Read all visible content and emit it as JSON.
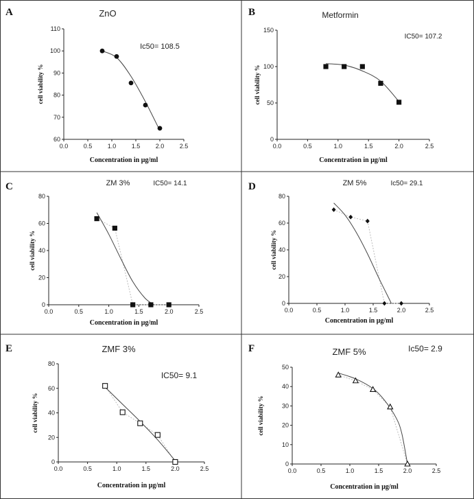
{
  "figure": {
    "grid_lines_color": "#333333",
    "fit_color": "#444444",
    "connector_color": "#bbbbbb"
  },
  "chart_data": [
    {
      "panel_letter": "A",
      "type": "scatter",
      "title": "ZnO",
      "ic50_label": "Ic50= 108.5",
      "marker": "circle",
      "xlabel": "Concentration in μg/ml",
      "ylabel": "cell viability %",
      "xlim": [
        0,
        2.5
      ],
      "ylim": [
        60,
        110
      ],
      "xticks": [
        0.0,
        0.5,
        1.0,
        1.5,
        2.0,
        2.5
      ],
      "xtick_labels": [
        "0.0",
        "0.5",
        "1.0",
        "1.5",
        "2.0",
        "2.5"
      ],
      "yticks": [
        60,
        70,
        80,
        90,
        100,
        110
      ],
      "ytick_labels": [
        "60",
        "70",
        "80",
        "90",
        "100",
        "110"
      ],
      "x": [
        0.8,
        1.1,
        1.4,
        1.7,
        2.0
      ],
      "y": [
        100,
        97.5,
        85.5,
        75.5,
        65
      ],
      "fit": [
        [
          0.8,
          100
        ],
        [
          1.1,
          97
        ],
        [
          1.4,
          88.5
        ],
        [
          1.7,
          77
        ],
        [
          2.0,
          64
        ]
      ],
      "connector": false
    },
    {
      "panel_letter": "B",
      "type": "scatter",
      "title": "Metformin",
      "ic50_label": "IC50= 107.2",
      "marker": "square",
      "xlabel": "Concentration in μg/ml",
      "ylabel": "cell viability %",
      "xlim": [
        0,
        2.5
      ],
      "ylim": [
        0,
        150
      ],
      "xticks": [
        0.0,
        0.5,
        1.0,
        1.5,
        2.0,
        2.5
      ],
      "xtick_labels": [
        "0.0",
        "0.5",
        "1.0",
        "1.5",
        "2.0",
        "2.5"
      ],
      "yticks": [
        0,
        50,
        100,
        150
      ],
      "ytick_labels": [
        "0",
        "50",
        "100",
        "150"
      ],
      "x": [
        0.8,
        1.1,
        1.4,
        1.7,
        2.0
      ],
      "y": [
        100,
        100,
        100,
        77,
        51
      ],
      "fit": [
        [
          0.8,
          104
        ],
        [
          1.1,
          102
        ],
        [
          1.4,
          94
        ],
        [
          1.7,
          80
        ],
        [
          2.0,
          52
        ]
      ],
      "connector": false
    },
    {
      "panel_letter": "C",
      "type": "scatter",
      "title": "ZM 3%",
      "ic50_label": "IC50= 14.1",
      "marker": "square",
      "xlabel": "Concentration in μg/ml",
      "ylabel": "cell viability %",
      "xlim": [
        0,
        2.5
      ],
      "ylim": [
        0,
        80
      ],
      "xticks": [
        0.0,
        0.5,
        1.0,
        1.5,
        2.0,
        2.5
      ],
      "xtick_labels": [
        "0.0",
        "0.5",
        "1.0",
        "1.5",
        "2.0",
        "2.5"
      ],
      "yticks": [
        0,
        20,
        40,
        60,
        80
      ],
      "ytick_labels": [
        "0",
        "20",
        "40",
        "60",
        "80"
      ],
      "x": [
        0.8,
        1.1,
        1.4,
        1.7,
        2.0
      ],
      "y": [
        63.5,
        56.5,
        0,
        0,
        0
      ],
      "fit": [
        [
          0.8,
          68
        ],
        [
          1.0,
          52
        ],
        [
          1.2,
          34
        ],
        [
          1.4,
          17
        ],
        [
          1.6,
          5
        ],
        [
          1.75,
          0
        ]
      ],
      "connector": true
    },
    {
      "panel_letter": "D",
      "type": "scatter",
      "title": "ZM 5%",
      "ic50_label": "Ic50= 29.1",
      "marker": "diamond",
      "xlabel": "Concentration in μg/ml",
      "ylabel": "cell viability %",
      "xlim": [
        0,
        2.5
      ],
      "ylim": [
        0,
        80
      ],
      "xticks": [
        0.0,
        0.5,
        1.0,
        1.5,
        2.0,
        2.5
      ],
      "xtick_labels": [
        "0.0",
        "0.5",
        "1.0",
        "1.5",
        "2.0",
        "2.5"
      ],
      "yticks": [
        0,
        20,
        40,
        60,
        80
      ],
      "ytick_labels": [
        "0",
        "20",
        "40",
        "60",
        "80"
      ],
      "x": [
        0.8,
        1.1,
        1.4,
        1.7,
        2.0
      ],
      "y": [
        70,
        64.5,
        61.5,
        0,
        0
      ],
      "fit": [
        [
          0.8,
          75
        ],
        [
          1.0,
          66
        ],
        [
          1.2,
          53
        ],
        [
          1.4,
          37
        ],
        [
          1.6,
          19
        ],
        [
          1.8,
          2
        ],
        [
          1.82,
          0
        ]
      ],
      "connector": true
    },
    {
      "panel_letter": "E",
      "type": "scatter",
      "title": "ZMF 3%",
      "ic50_label": "IC50= 9.1",
      "marker": "open-square",
      "xlabel": "Concentration in μg/ml",
      "ylabel": "cell viability %",
      "xlim": [
        0,
        2.5
      ],
      "ylim": [
        0,
        80
      ],
      "xticks": [
        0.0,
        0.5,
        1.0,
        1.5,
        2.0,
        2.5
      ],
      "xtick_labels": [
        "0.0",
        "0.5",
        "1.0",
        "1.5",
        "2.0",
        "2.5"
      ],
      "yticks": [
        0,
        20,
        40,
        60,
        80
      ],
      "ytick_labels": [
        "0",
        "20",
        "40",
        "60",
        "80"
      ],
      "x": [
        0.8,
        1.1,
        1.4,
        1.7,
        2.0
      ],
      "y": [
        62,
        40.5,
        31.5,
        22,
        0
      ],
      "fit": [
        [
          0.8,
          61
        ],
        [
          1.1,
          47
        ],
        [
          1.4,
          33
        ],
        [
          1.7,
          18
        ],
        [
          2.0,
          1
        ]
      ],
      "connector": true
    },
    {
      "panel_letter": "F",
      "type": "scatter",
      "title": "ZMF 5%",
      "ic50_label": "Ic50= 2.9",
      "marker": "open-triangle",
      "xlabel": "Concentration in μg/ml",
      "ylabel": "cell viability %",
      "xlim": [
        0,
        2.5
      ],
      "ylim": [
        0,
        50
      ],
      "xticks": [
        0.0,
        0.5,
        1.0,
        1.5,
        2.0,
        2.5
      ],
      "xtick_labels": [
        "0.0",
        "0.5",
        "1.0",
        "1.5",
        "2.0",
        "2.5"
      ],
      "yticks": [
        0,
        10,
        20,
        30,
        40,
        50
      ],
      "ytick_labels": [
        "0",
        "10",
        "20",
        "30",
        "40",
        "50"
      ],
      "x": [
        0.8,
        1.1,
        1.4,
        1.7,
        2.0
      ],
      "y": [
        46,
        43,
        38.5,
        29.5,
        0
      ],
      "fit": [
        [
          0.8,
          47
        ],
        [
          1.1,
          44
        ],
        [
          1.4,
          39
        ],
        [
          1.6,
          33
        ],
        [
          1.8,
          24
        ],
        [
          1.9,
          16
        ],
        [
          2.0,
          0
        ]
      ],
      "connector": true
    }
  ]
}
